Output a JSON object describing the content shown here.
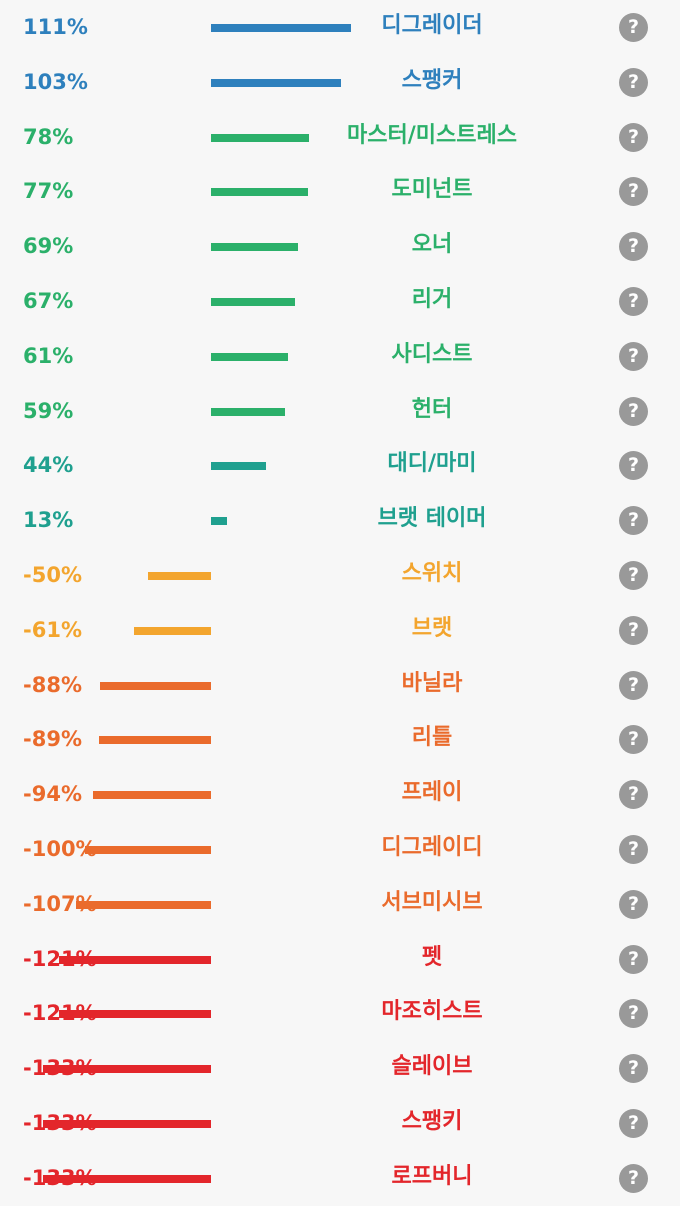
{
  "chart_data": {
    "type": "bar",
    "orientation": "horizontal",
    "baseline_value": 0,
    "help_glyph": "?",
    "help_icon": "question-mark-circle-icon",
    "colors": {
      "blue": "#2e80bd",
      "green": "#2bb06a",
      "teal": "#1fa08f",
      "amber": "#f3a52e",
      "orange": "#ea6b2c",
      "red": "#e3262b",
      "help_bg": "#999999"
    },
    "items": [
      {
        "label": "디그레이더",
        "value": 111,
        "display": "111%",
        "color": "#2e80bd"
      },
      {
        "label": "스팽커",
        "value": 103,
        "display": "103%",
        "color": "#2e80bd"
      },
      {
        "label": "마스터/미스트레스",
        "value": 78,
        "display": "78%",
        "color": "#2bb06a"
      },
      {
        "label": "도미넌트",
        "value": 77,
        "display": "77%",
        "color": "#2bb06a"
      },
      {
        "label": "오너",
        "value": 69,
        "display": "69%",
        "color": "#2bb06a"
      },
      {
        "label": "리거",
        "value": 67,
        "display": "67%",
        "color": "#2bb06a"
      },
      {
        "label": "사디스트",
        "value": 61,
        "display": "61%",
        "color": "#2bb06a"
      },
      {
        "label": "헌터",
        "value": 59,
        "display": "59%",
        "color": "#2bb06a"
      },
      {
        "label": "대디/마미",
        "value": 44,
        "display": "44%",
        "color": "#1fa08f"
      },
      {
        "label": "브랫 테이머",
        "value": 13,
        "display": "13%",
        "color": "#1fa08f"
      },
      {
        "label": "스위치",
        "value": -50,
        "display": "-50%",
        "color": "#f3a52e"
      },
      {
        "label": "브랫",
        "value": -61,
        "display": "-61%",
        "color": "#f3a52e"
      },
      {
        "label": "바닐라",
        "value": -88,
        "display": "-88%",
        "color": "#ea6b2c"
      },
      {
        "label": "리틀",
        "value": -89,
        "display": "-89%",
        "color": "#ea6b2c"
      },
      {
        "label": "프레이",
        "value": -94,
        "display": "-94%",
        "color": "#ea6b2c"
      },
      {
        "label": "디그레이디",
        "value": -100,
        "display": "-100%",
        "color": "#ea6b2c"
      },
      {
        "label": "서브미시브",
        "value": -107,
        "display": "-107%",
        "color": "#ea6b2c"
      },
      {
        "label": "펫",
        "value": -121,
        "display": "-121%",
        "color": "#e3262b"
      },
      {
        "label": "마조히스트",
        "value": -121,
        "display": "-121%",
        "color": "#e3262b"
      },
      {
        "label": "슬레이브",
        "value": -133,
        "display": "-133%",
        "color": "#e3262b"
      },
      {
        "label": "스팽키",
        "value": -133,
        "display": "-133%",
        "color": "#e3262b"
      },
      {
        "label": "로프버니",
        "value": -133,
        "display": "-133%",
        "color": "#e3262b"
      }
    ]
  }
}
